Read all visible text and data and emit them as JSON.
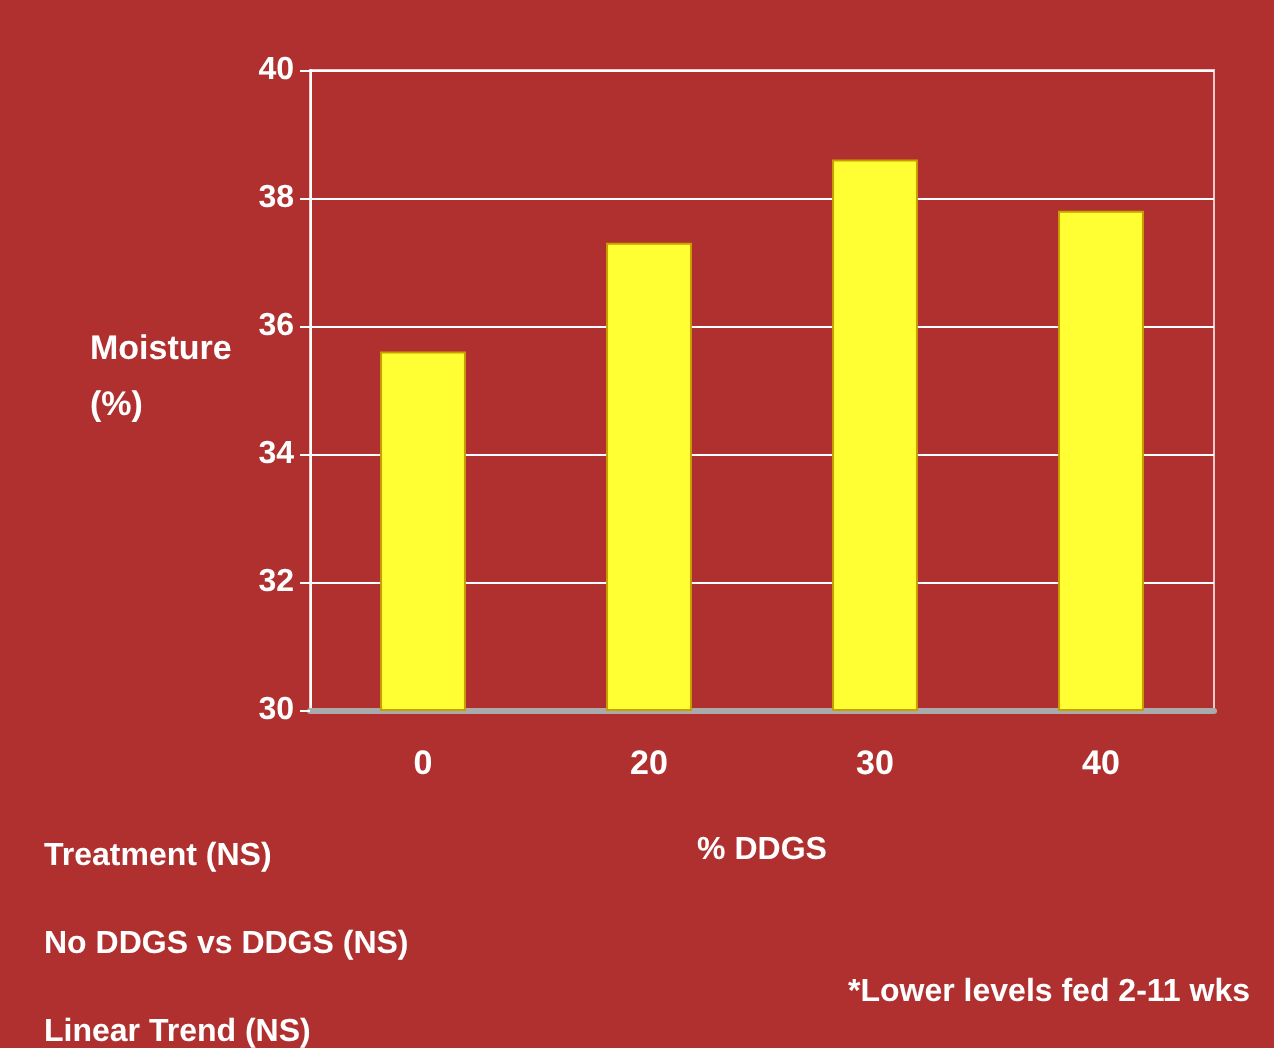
{
  "chart_data": {
    "type": "bar",
    "xlabel": "% DDGS",
    "ylabel": "Moisture\n(%)",
    "categories": [
      "0",
      "20",
      "30",
      "40"
    ],
    "values": [
      35.6,
      37.3,
      38.6,
      37.8
    ],
    "color": "#ffff33",
    "ylim": [
      30,
      40
    ],
    "yticks": [
      30,
      32,
      34,
      36,
      38,
      40
    ],
    "grid": "y",
    "annotations": [
      "Treatment (NS)",
      "No DDGS vs DDGS (NS)",
      "Linear Trend (NS)",
      "*Lower levels fed 2-11 wks"
    ]
  }
}
